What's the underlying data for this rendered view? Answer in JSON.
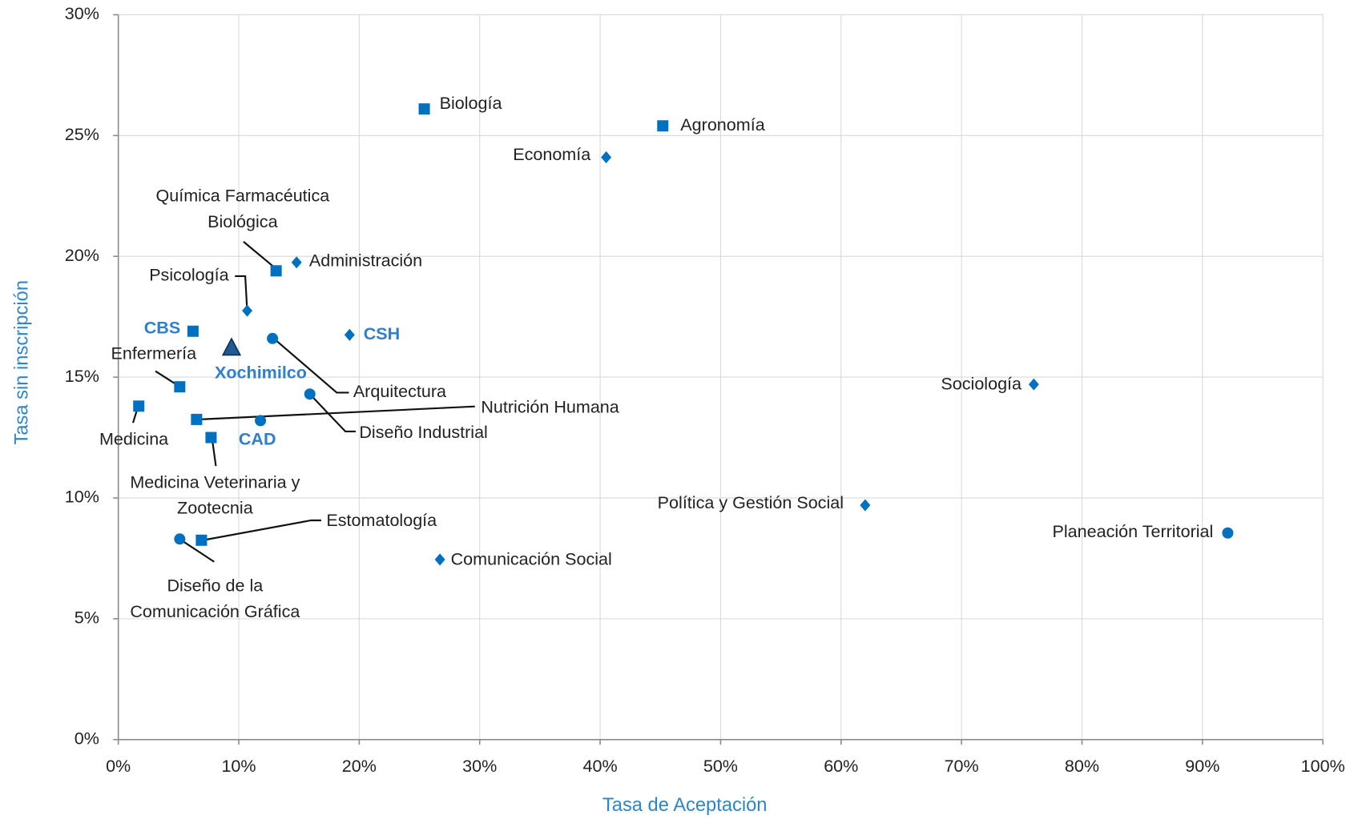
{
  "chart_data": {
    "type": "scatter",
    "x_label": "Tasa de Aceptación",
    "y_label": "Tasa sin inscripción",
    "xlim": [
      0,
      100
    ],
    "ylim": [
      0,
      30
    ],
    "xticks": [
      {
        "value": 0,
        "label": "0%"
      },
      {
        "value": 10,
        "label": "10%"
      },
      {
        "value": 20,
        "label": "20%"
      },
      {
        "value": 30,
        "label": "30%"
      },
      {
        "value": 40,
        "label": "40%"
      },
      {
        "value": 50,
        "label": "50%"
      },
      {
        "value": 60,
        "label": "60%"
      },
      {
        "value": 70,
        "label": "70%"
      },
      {
        "value": 80,
        "label": "80%"
      },
      {
        "value": 90,
        "label": "90%"
      },
      {
        "value": 100,
        "label": "100%"
      }
    ],
    "yticks": [
      {
        "value": 0,
        "label": "0%"
      },
      {
        "value": 5,
        "label": "5%"
      },
      {
        "value": 10,
        "label": "10%"
      },
      {
        "value": 15,
        "label": "15%"
      },
      {
        "value": 20,
        "label": "20%"
      },
      {
        "value": 25,
        "label": "25%"
      },
      {
        "value": 30,
        "label": "30%"
      }
    ],
    "grid": true,
    "color": "#0070c0",
    "points": [
      {
        "label": [
          "Biología"
        ],
        "x": 25.4,
        "y": 26.1,
        "marker": "square"
      },
      {
        "label": [
          "Agronomía"
        ],
        "x": 45.2,
        "y": 25.4,
        "marker": "square"
      },
      {
        "label": [
          "Economía"
        ],
        "x": 40.5,
        "y": 24.1,
        "marker": "diamond"
      },
      {
        "label": [
          "Química Farmacéutica",
          "Biológica"
        ],
        "x": 13.1,
        "y": 19.4,
        "marker": "square"
      },
      {
        "label": [
          "Administración"
        ],
        "x": 14.8,
        "y": 19.75,
        "marker": "diamond"
      },
      {
        "label": [
          "Psicología"
        ],
        "x": 10.7,
        "y": 17.75,
        "marker": "diamond"
      },
      {
        "label": [
          "CBS"
        ],
        "x": 6.2,
        "y": 16.9,
        "marker": "square"
      },
      {
        "label": [
          "Xochimilco"
        ],
        "x": 9.4,
        "y": 16.2,
        "marker": "triangle"
      },
      {
        "label": [
          "Arquitectura"
        ],
        "x": 12.8,
        "y": 16.6,
        "marker": "circle"
      },
      {
        "label": [
          "CSH"
        ],
        "x": 19.2,
        "y": 16.75,
        "marker": "diamond"
      },
      {
        "label": [
          "Enfermería"
        ],
        "x": 5.1,
        "y": 14.6,
        "marker": "square"
      },
      {
        "label": [
          "Diseño Industrial"
        ],
        "x": 15.9,
        "y": 14.3,
        "marker": "circle"
      },
      {
        "label": [
          "Medicina"
        ],
        "x": 1.7,
        "y": 13.8,
        "marker": "square"
      },
      {
        "label": [
          "Nutrición Humana"
        ],
        "x": 6.5,
        "y": 13.25,
        "marker": "square"
      },
      {
        "label": [
          "CAD"
        ],
        "x": 11.8,
        "y": 13.2,
        "marker": "circle"
      },
      {
        "label": [
          "Medicina Veterinaria y",
          "Zootecnia"
        ],
        "x": 7.7,
        "y": 12.5,
        "marker": "square"
      },
      {
        "label": [
          "Sociología"
        ],
        "x": 76.0,
        "y": 14.7,
        "marker": "diamond"
      },
      {
        "label": [
          "Política y Gestión Social"
        ],
        "x": 62.0,
        "y": 9.7,
        "marker": "diamond"
      },
      {
        "label": [
          "Planeación Territorial"
        ],
        "x": 92.1,
        "y": 8.55,
        "marker": "circle"
      },
      {
        "label": [
          "Estomatología"
        ],
        "x": 6.9,
        "y": 8.25,
        "marker": "square"
      },
      {
        "label": [
          "Diseño de la",
          "Comunicación Gráfica"
        ],
        "x": 5.1,
        "y": 8.3,
        "marker": "circle"
      },
      {
        "label": [
          "Comunicación Social"
        ],
        "x": 26.7,
        "y": 7.45,
        "marker": "diamond"
      }
    ]
  }
}
